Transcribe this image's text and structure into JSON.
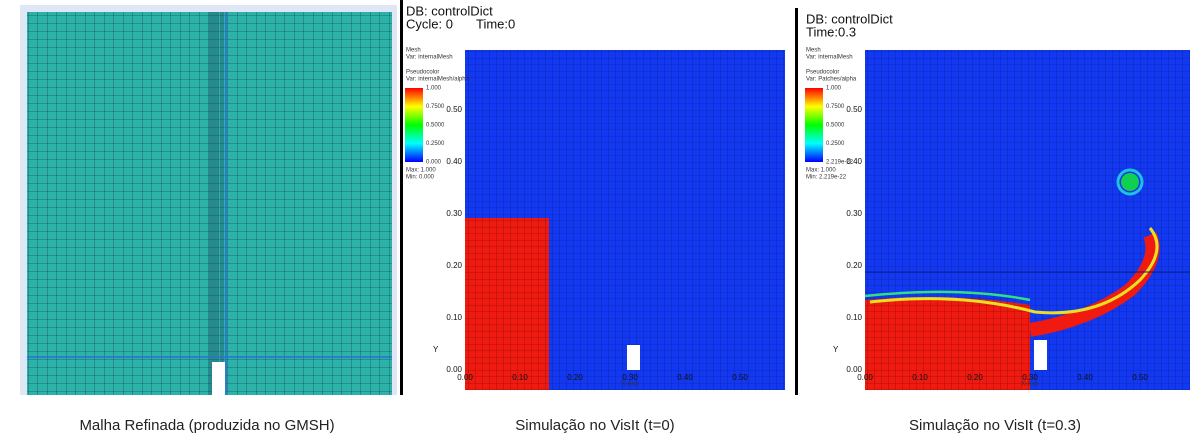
{
  "panels": [
    {
      "caption": "Malha Refinada (produzida no GMSH)"
    },
    {
      "db": "DB: controlDict",
      "cycle": "Cycle: 0",
      "time": "Time:0",
      "mesh": "Mesh",
      "mesh_var": "Var: internalMesh",
      "pseudo": "Pseudocolor",
      "pseudo_var": "Var: internalMesh/alpha",
      "legend": [
        "1.000",
        "0.7500",
        "0.5000",
        "0.2500",
        "0.000"
      ],
      "max": "Max: 1.000",
      "min": "Min: 0.000",
      "yticks": [
        "0.00",
        "0.10",
        "0.20",
        "0.30",
        "0.40",
        "0.50"
      ],
      "xticks": [
        "0.00",
        "0.10",
        "0.20",
        "0.30",
        "0.40",
        "0.50"
      ],
      "x_axis": "X-Axis",
      "y_axis": "Y",
      "caption": "Simulação no VisIt (t=0)"
    },
    {
      "db": "DB: controlDict",
      "time": "Time:0.3",
      "mesh": "Mesh",
      "mesh_var": "Var: internalMesh",
      "pseudo": "Pseudocolor",
      "pseudo_var": "Var: Patches/alpha",
      "legend": [
        "1.000",
        "0.7500",
        "0.5000",
        "0.2500",
        "2.219e-22"
      ],
      "max": "Max: 1.000",
      "min": "Min: 2.219e-22",
      "yticks": [
        "0.00",
        "0.10",
        "0.20",
        "0.30",
        "0.40",
        "0.50"
      ],
      "xticks": [
        "0.00",
        "0.10",
        "0.20",
        "0.30",
        "0.40",
        "0.50"
      ],
      "x_axis": "X-Axis",
      "y_axis": "Y",
      "caption": "Simulação no VisIt (t=0.3)"
    }
  ]
}
